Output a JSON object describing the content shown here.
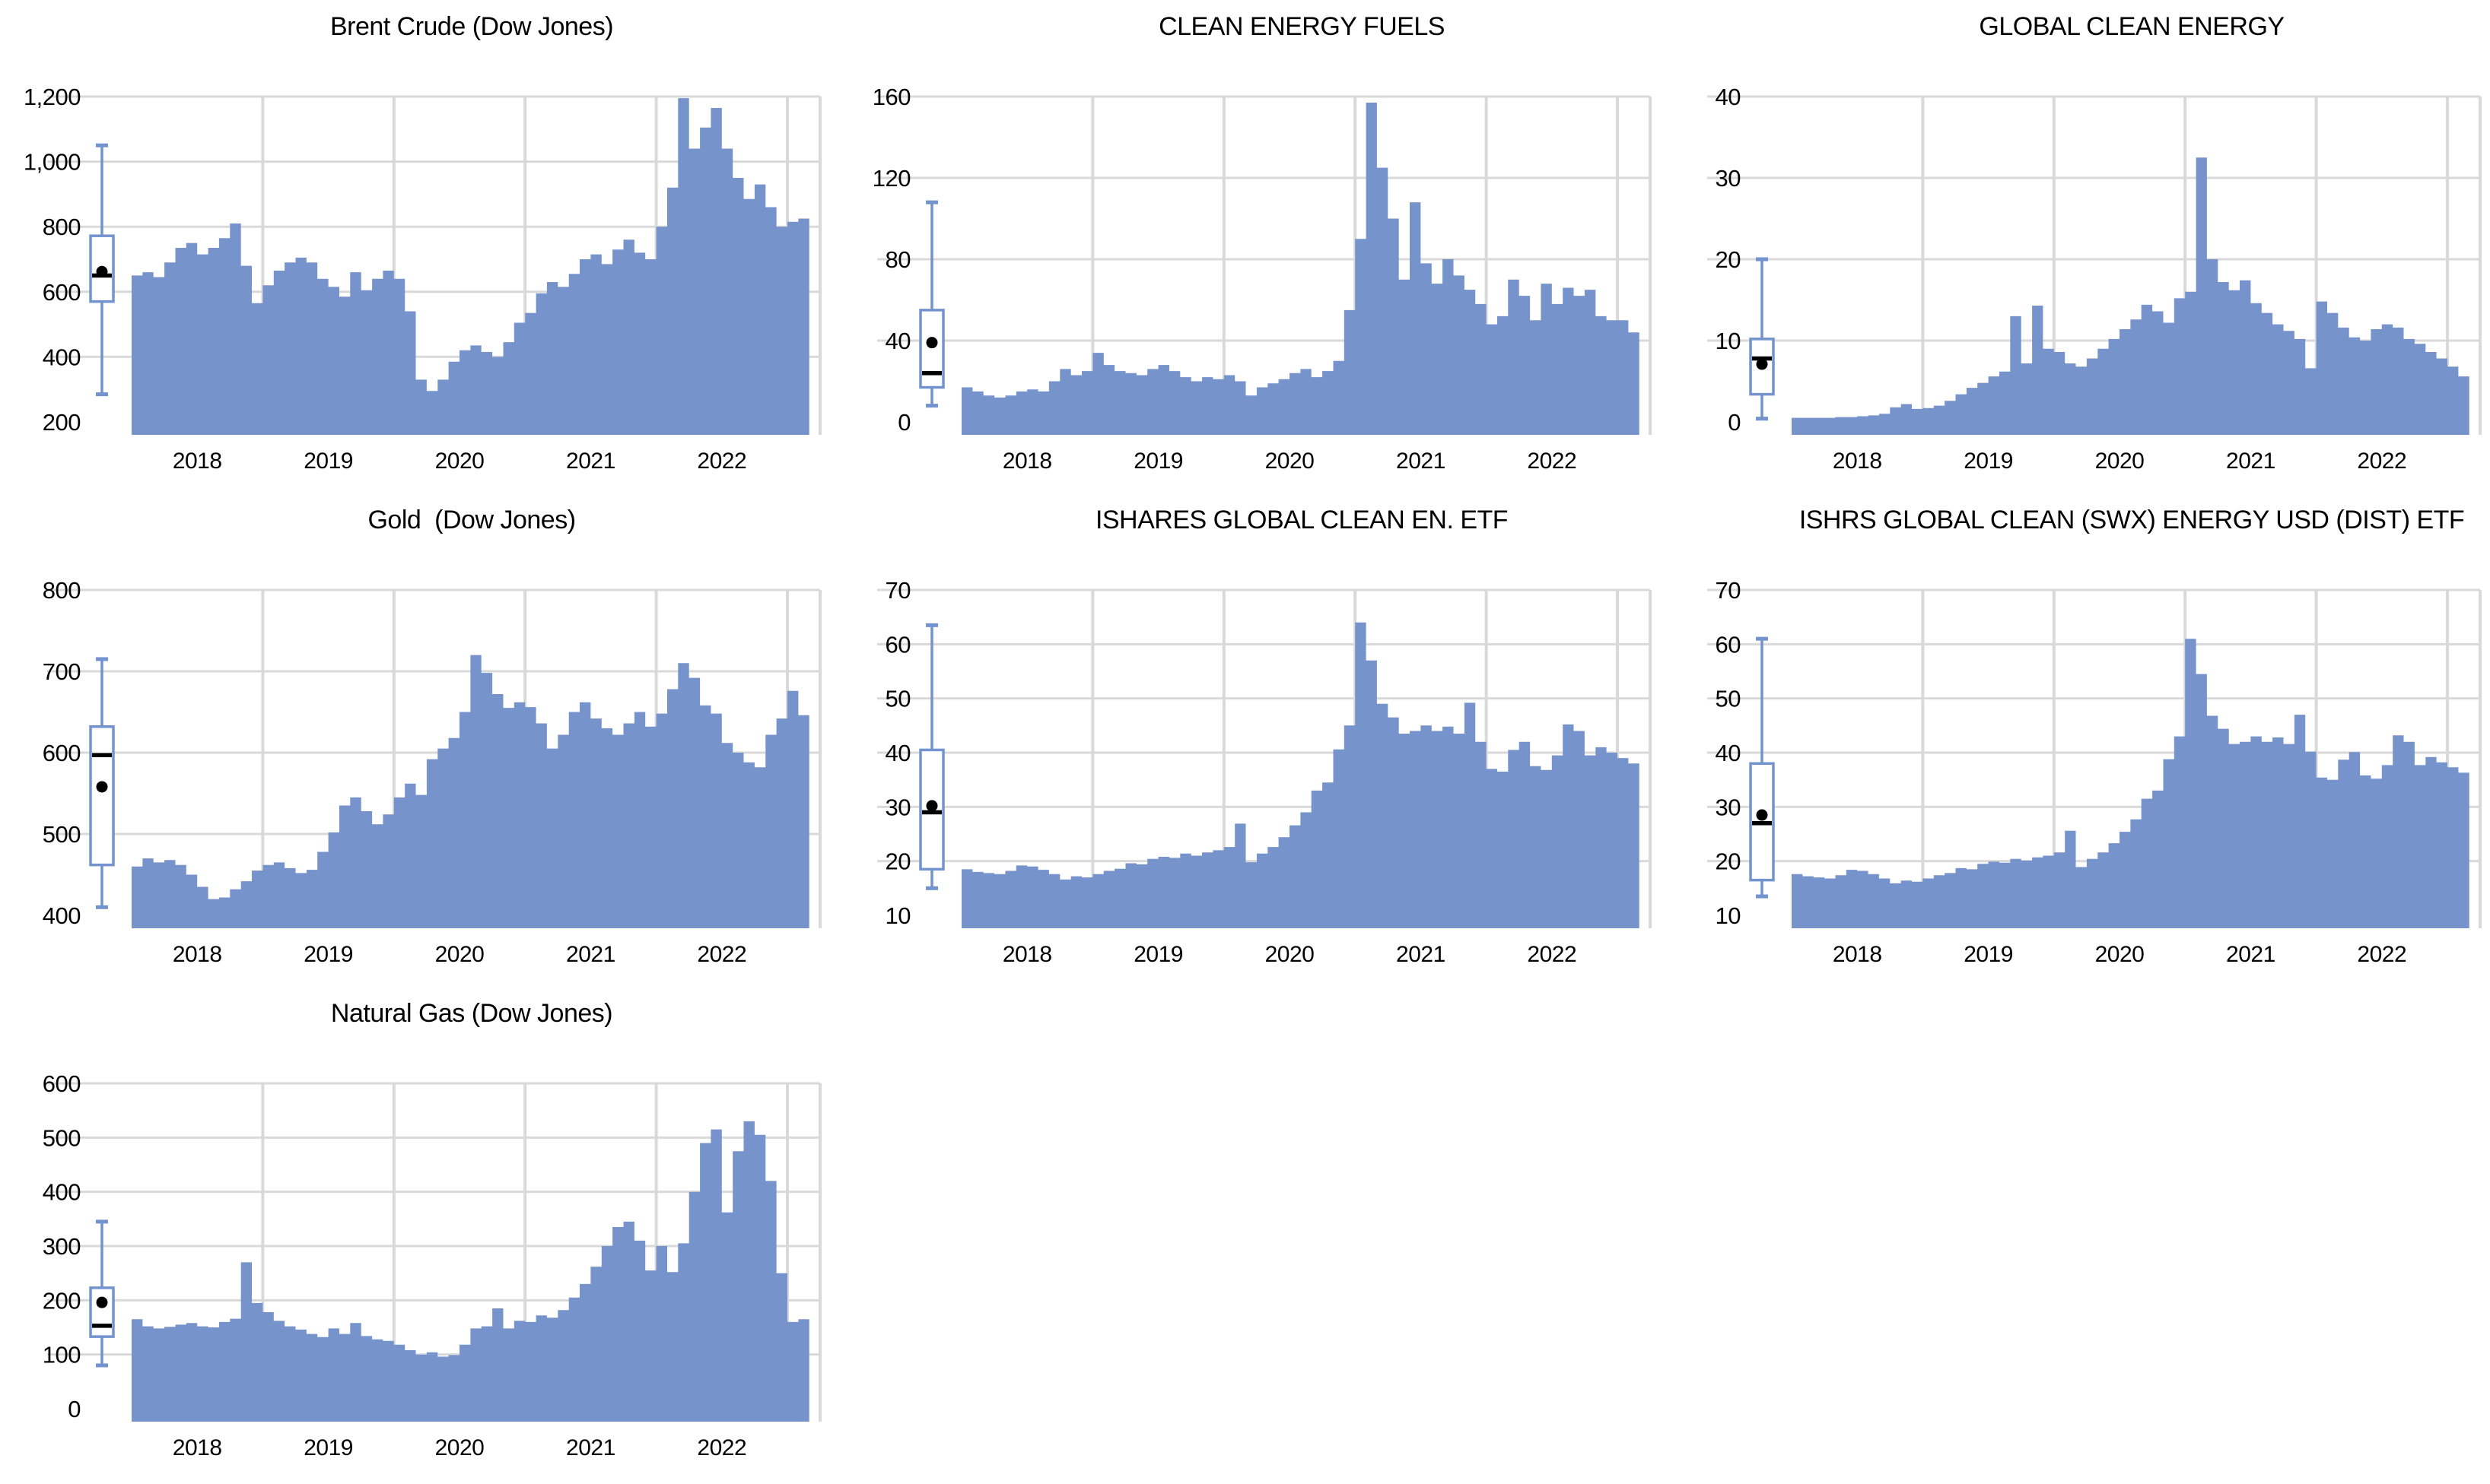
{
  "page": {
    "background": "#ffffff",
    "description": "Grid of seven commodity and clean-energy index area charts with left-side box-and-whisker summaries"
  },
  "style": {
    "area_fill": "#7693CB",
    "box_stroke": "#7293CE",
    "gridline": "#D9D9D9",
    "text_color": "#000000",
    "box_fill": "#FFFFFF",
    "marker_color": "#000000"
  },
  "axis": {
    "years": [
      "2018",
      "2019",
      "2020",
      "2021",
      "2022"
    ]
  },
  "chart_data": [
    {
      "id": "brent-crude-dow-jones",
      "type": "area",
      "title": "Brent Crude (Dow Jones)",
      "ytick_labels": [
        "200",
        "400",
        "600",
        "800",
        "1,000",
        "1,200"
      ],
      "ytick_values": [
        200,
        400,
        600,
        800,
        1000,
        1200
      ],
      "x_start_year": 2018,
      "points_per_year": 12,
      "values": [
        650,
        660,
        645,
        690,
        735,
        750,
        715,
        735,
        765,
        810,
        680,
        565,
        620,
        665,
        690,
        705,
        690,
        640,
        615,
        585,
        660,
        605,
        640,
        665,
        640,
        540,
        330,
        295,
        330,
        385,
        420,
        435,
        415,
        400,
        445,
        505,
        535,
        595,
        630,
        615,
        655,
        700,
        715,
        685,
        730,
        760,
        720,
        700,
        800,
        920,
        1195,
        1040,
        1105,
        1165,
        1040,
        950,
        885,
        930,
        860,
        800,
        815,
        825
      ],
      "boxplot": {
        "whisker_low": 285,
        "q1": 570,
        "median": 650,
        "mean": 662,
        "q3": 772,
        "whisker_high": 1050
      }
    },
    {
      "id": "clean-energy-fuels",
      "type": "area",
      "title": "CLEAN ENERGY FUELS",
      "ytick_labels": [
        "0",
        "40",
        "80",
        "120",
        "160"
      ],
      "ytick_values": [
        0,
        40,
        80,
        120,
        160
      ],
      "x_start_year": 2018,
      "points_per_year": 12,
      "values": [
        17,
        15,
        13,
        12,
        13,
        15,
        16,
        15,
        20,
        26,
        23,
        25,
        34,
        28,
        25,
        24,
        23,
        26,
        28,
        25,
        22,
        20,
        22,
        21,
        23,
        20,
        13,
        17,
        19,
        21,
        24,
        26,
        22,
        25,
        30,
        55,
        90,
        157,
        125,
        100,
        70,
        108,
        78,
        68,
        80,
        72,
        65,
        58,
        48,
        52,
        70,
        62,
        50,
        68,
        58,
        66,
        62,
        65,
        52,
        50,
        50,
        44
      ],
      "boxplot": {
        "whisker_low": 8,
        "q1": 17,
        "median": 24,
        "mean": 39,
        "q3": 55,
        "whisker_high": 108
      }
    },
    {
      "id": "global-clean-energy",
      "type": "area",
      "title": "GLOBAL CLEAN ENERGY",
      "ytick_labels": [
        "0",
        "10",
        "20",
        "30",
        "40"
      ],
      "ytick_values": [
        0,
        10,
        20,
        30,
        40
      ],
      "x_start_year": 2018,
      "points_per_year": 12,
      "values": [
        0.5,
        0.5,
        0.5,
        0.5,
        0.6,
        0.6,
        0.7,
        0.8,
        1.0,
        1.8,
        2.2,
        1.6,
        1.7,
        2.0,
        2.6,
        3.4,
        4.2,
        4.8,
        5.6,
        6.2,
        13.0,
        7.2,
        14.3,
        9.0,
        8.6,
        7.2,
        6.8,
        7.8,
        9.0,
        10.2,
        11.4,
        12.6,
        14.4,
        13.6,
        12.2,
        15.2,
        16.0,
        32.5,
        20.0,
        17.2,
        16.2,
        17.4,
        14.6,
        13.4,
        12.0,
        11.2,
        10.2,
        6.6,
        14.8,
        13.4,
        11.6,
        10.4,
        10.0,
        11.4,
        12.0,
        11.6,
        10.2,
        9.6,
        8.6,
        7.8,
        6.8,
        5.6
      ],
      "boxplot": {
        "whisker_low": 0.4,
        "q1": 3.4,
        "median": 7.8,
        "mean": 7.1,
        "q3": 10.2,
        "whisker_high": 20
      }
    },
    {
      "id": "gold-dow-jones",
      "type": "area",
      "title": "Gold  (Dow Jones)",
      "ytick_labels": [
        "400",
        "500",
        "600",
        "700",
        "800"
      ],
      "ytick_values": [
        400,
        500,
        600,
        700,
        800
      ],
      "x_start_year": 2018,
      "points_per_year": 12,
      "values": [
        460,
        470,
        465,
        468,
        462,
        450,
        435,
        420,
        422,
        432,
        442,
        455,
        462,
        465,
        458,
        452,
        456,
        478,
        502,
        535,
        545,
        528,
        512,
        524,
        545,
        562,
        548,
        592,
        605,
        618,
        650,
        720,
        698,
        672,
        655,
        662,
        656,
        636,
        605,
        622,
        650,
        662,
        642,
        630,
        622,
        636,
        650,
        632,
        648,
        678,
        710,
        692,
        658,
        648,
        612,
        600,
        588,
        582,
        622,
        642,
        676,
        646
      ],
      "boxplot": {
        "whisker_low": 410,
        "q1": 462,
        "median": 597,
        "mean": 558,
        "q3": 632,
        "whisker_high": 715
      }
    },
    {
      "id": "ishares-global-clean-en-etf",
      "type": "area",
      "title": "ISHARES GLOBAL CLEAN EN. ETF",
      "ytick_labels": [
        "10",
        "20",
        "30",
        "40",
        "50",
        "60",
        "70"
      ],
      "ytick_values": [
        10,
        20,
        30,
        40,
        50,
        60,
        70
      ],
      "x_start_year": 2018,
      "points_per_year": 12,
      "values": [
        18.5,
        18.0,
        17.8,
        17.6,
        18.2,
        19.2,
        19.0,
        18.4,
        17.6,
        16.6,
        17.2,
        17.0,
        17.6,
        18.2,
        18.6,
        19.6,
        19.4,
        20.4,
        20.8,
        20.6,
        21.4,
        21.0,
        21.6,
        22.0,
        22.6,
        26.9,
        19.8,
        21.4,
        22.6,
        24.4,
        26.6,
        29.0,
        33.0,
        34.5,
        40.6,
        45.0,
        64.0,
        57.0,
        49.0,
        46.5,
        43.5,
        44.0,
        45.0,
        44.0,
        44.8,
        43.5,
        49.2,
        42.0,
        37.0,
        36.5,
        40.5,
        42.0,
        37.5,
        36.8,
        39.5,
        45.2,
        44.0,
        39.5,
        41.0,
        40.0,
        39.0,
        38.0
      ],
      "boxplot": {
        "whisker_low": 15,
        "q1": 18.5,
        "median": 29,
        "mean": 30.2,
        "q3": 40.5,
        "whisker_high": 63.5
      }
    },
    {
      "id": "ishrs-global-clean-swx-energy-usd-dist-etf",
      "type": "area",
      "title": "ISHRS GLOBAL CLEAN (SWX) ENERGY USD (DIST) ETF",
      "ytick_labels": [
        "10",
        "20",
        "30",
        "40",
        "50",
        "60",
        "70"
      ],
      "ytick_values": [
        10,
        20,
        30,
        40,
        50,
        60,
        70
      ],
      "x_start_year": 2018,
      "points_per_year": 12,
      "values": [
        17.6,
        17.2,
        17.0,
        16.8,
        17.4,
        18.4,
        18.2,
        17.6,
        16.8,
        15.9,
        16.4,
        16.2,
        16.8,
        17.4,
        17.8,
        18.7,
        18.5,
        19.5,
        19.9,
        19.7,
        20.4,
        20.1,
        20.7,
        21.0,
        21.6,
        25.6,
        18.9,
        20.4,
        21.6,
        23.3,
        25.4,
        27.7,
        31.5,
        33.0,
        38.8,
        43.0,
        61.0,
        54.5,
        46.8,
        44.4,
        41.6,
        42.0,
        43.0,
        42.0,
        42.8,
        41.6,
        47.0,
        40.2,
        35.4,
        35.0,
        38.7,
        40.1,
        35.8,
        35.2,
        37.7,
        43.2,
        42.0,
        37.7,
        39.2,
        38.2,
        37.3,
        36.3
      ],
      "boxplot": {
        "whisker_low": 13.5,
        "q1": 16.5,
        "median": 27,
        "mean": 28.5,
        "q3": 38,
        "whisker_high": 61
      }
    },
    {
      "id": "natural-gas-dow-jones",
      "type": "area",
      "title": "Natural Gas (Dow Jones)",
      "ytick_labels": [
        "0",
        "100",
        "200",
        "300",
        "400",
        "500",
        "600"
      ],
      "ytick_values": [
        0,
        100,
        200,
        300,
        400,
        500,
        600
      ],
      "x_start_year": 2018,
      "points_per_year": 12,
      "values": [
        165,
        152,
        148,
        151,
        155,
        158,
        152,
        150,
        160,
        166,
        270,
        195,
        178,
        162,
        152,
        146,
        138,
        132,
        148,
        138,
        158,
        134,
        128,
        125,
        118,
        108,
        100,
        104,
        96,
        99,
        118,
        148,
        152,
        185,
        148,
        162,
        160,
        172,
        168,
        182,
        205,
        230,
        262,
        300,
        335,
        345,
        310,
        255,
        300,
        252,
        305,
        400,
        490,
        515,
        362,
        475,
        530,
        505,
        420,
        250,
        160,
        165
      ],
      "boxplot": {
        "whisker_low": 80,
        "q1": 133,
        "median": 153,
        "mean": 196,
        "q3": 223,
        "whisker_high": 345
      }
    }
  ]
}
